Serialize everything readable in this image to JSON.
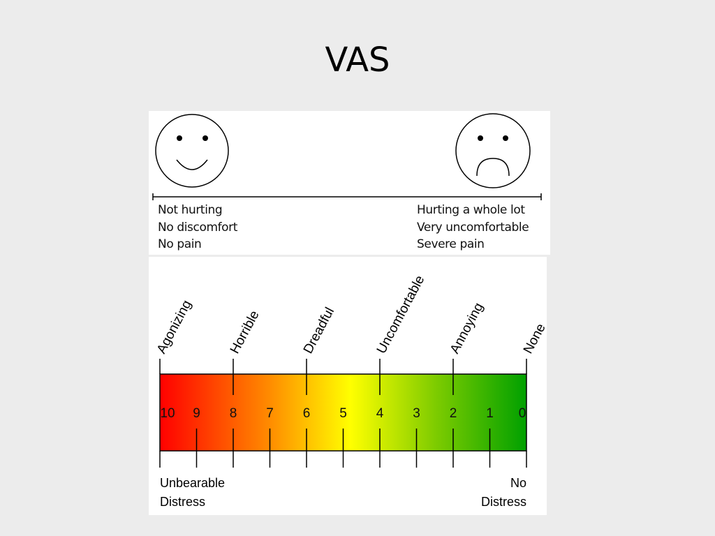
{
  "slide": {
    "title": "VAS"
  },
  "face_scale": {
    "left_face": "smiley-face-icon",
    "right_face": "sad-face-icon",
    "left_lines": [
      "Not hurting",
      "No discomfort",
      "No pain"
    ],
    "right_lines": [
      "Hurting a whole lot",
      "Very uncomfortable",
      "Severe pain"
    ]
  },
  "numeric_scale": {
    "numbers": [
      "10",
      "9",
      "8",
      "7",
      "6",
      "5",
      "4",
      "3",
      "2",
      "1",
      "0"
    ],
    "descriptors": [
      {
        "label": "Agonizing",
        "value": 10
      },
      {
        "label": "Horrible",
        "value": 8
      },
      {
        "label": "Dreadful",
        "value": 6
      },
      {
        "label": "Uncomfortable",
        "value": 4
      },
      {
        "label": "Annoying",
        "value": 2
      },
      {
        "label": "None",
        "value": 0
      }
    ],
    "gradient_colors": [
      "#ff0000",
      "#ff8c00",
      "#ffff00",
      "#7fcc00",
      "#00a000"
    ],
    "left_end": [
      "Unbearable",
      "Distress"
    ],
    "right_end": [
      "No",
      "Distress"
    ]
  }
}
